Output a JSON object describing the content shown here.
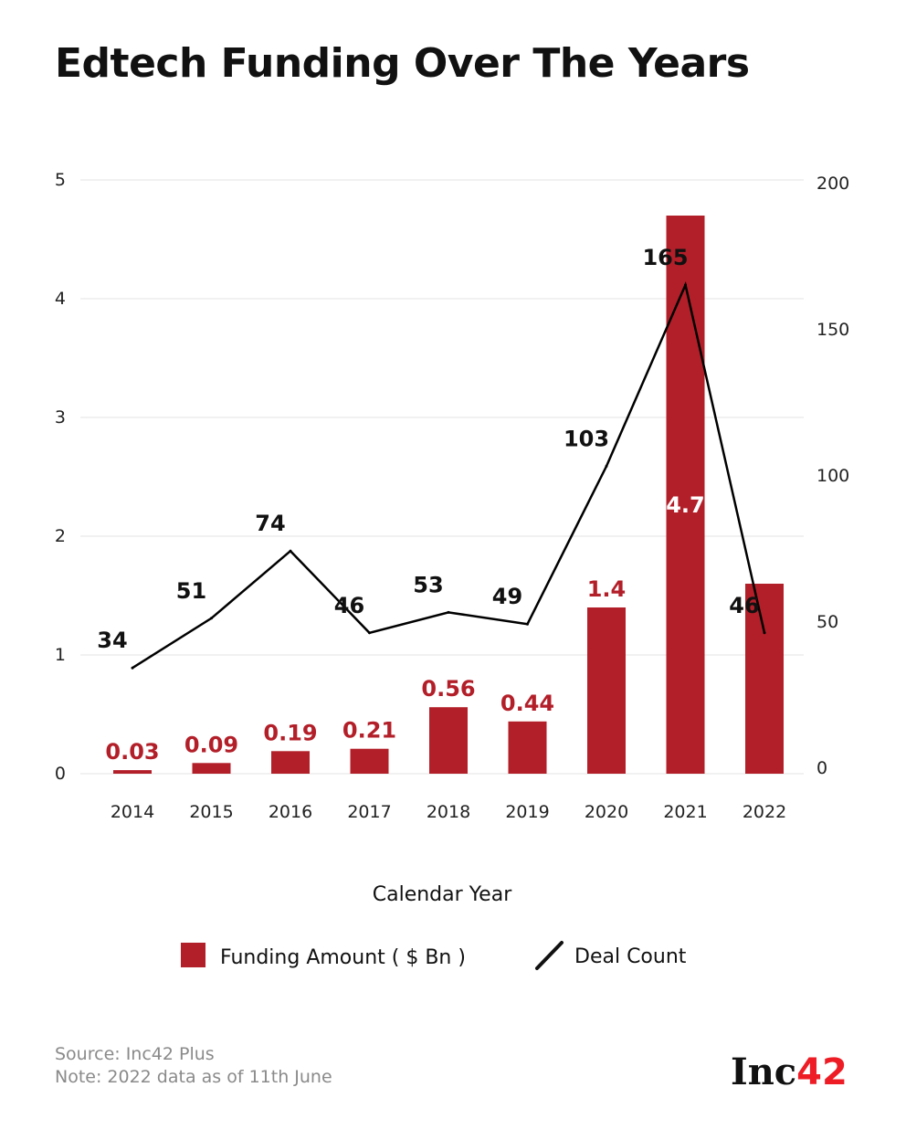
{
  "title": "Edtech Funding Over The Years",
  "chart_data": {
    "type": "bar+line",
    "title": "Edtech Funding Over The Years",
    "xlabel": "Calendar Year",
    "categories": [
      "2014",
      "2015",
      "2016",
      "2017",
      "2018",
      "2019",
      "2020",
      "2021",
      "2022"
    ],
    "series": [
      {
        "name": "Funding Amount ( $ Bn )",
        "type": "bar",
        "axis": "left",
        "color": "#b31f29",
        "values": [
          0.03,
          0.09,
          0.19,
          0.21,
          0.56,
          0.44,
          1.4,
          4.7,
          1.6
        ],
        "labels": [
          "0.03",
          "0.09",
          "0.19",
          "0.21",
          "0.56",
          "0.44",
          "1.4",
          "4.7",
          "1.6"
        ]
      },
      {
        "name": "Deal Count",
        "type": "line",
        "axis": "right",
        "color": "#000000",
        "values": [
          34,
          51,
          74,
          46,
          53,
          49,
          103,
          165,
          46
        ],
        "labels": [
          "34",
          "51",
          "74",
          "46",
          "53",
          "49",
          "103",
          "165",
          "46"
        ]
      }
    ],
    "left_axis": {
      "ylim": [
        0,
        5
      ],
      "ticks": [
        "0",
        "1",
        "2",
        "3",
        "4",
        "5"
      ]
    },
    "right_axis": {
      "ylim": [
        0,
        200
      ],
      "ticks": [
        "0",
        "50",
        "100",
        "150",
        "200"
      ]
    },
    "grid": true,
    "legend_placement": "bottom"
  },
  "footer": {
    "source": "Source: Inc42 Plus",
    "note": "Note:  2022 data as of 11th June"
  },
  "logo": {
    "text": "Inc",
    "accent": "42"
  }
}
